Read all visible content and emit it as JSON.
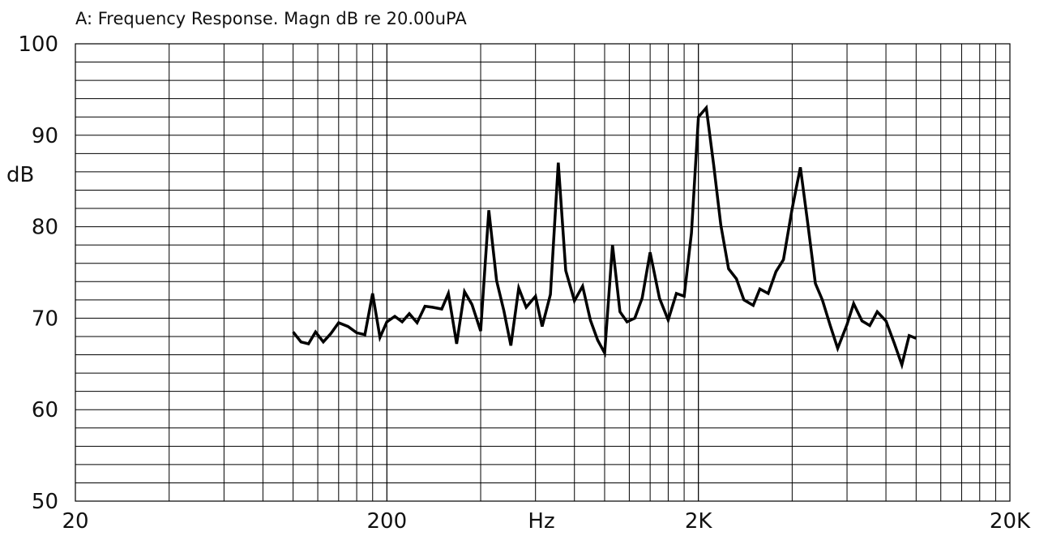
{
  "chart_data": {
    "type": "line",
    "title": "A: Frequency Response. Magn dB re 20.00uPA",
    "xlabel": "Hz",
    "ylabel": "dB",
    "x_scale": "log",
    "xlim": [
      20,
      20000
    ],
    "ylim": [
      50,
      100
    ],
    "x_ticks": [
      {
        "value": 20,
        "label": "20"
      },
      {
        "value": 200,
        "label": "200"
      },
      {
        "value": 2000,
        "label": "2K"
      },
      {
        "value": 20000,
        "label": "20K"
      }
    ],
    "y_ticks": [
      {
        "value": 100,
        "label": "100"
      },
      {
        "value": 90,
        "label": "90"
      },
      {
        "value": 80,
        "label": "80"
      },
      {
        "value": 70,
        "label": "70"
      },
      {
        "value": 60,
        "label": "60"
      },
      {
        "value": 50,
        "label": "50"
      }
    ],
    "grid": true,
    "series": [
      {
        "x": [
          100,
          106,
          112,
          118,
          125,
          132,
          140,
          150,
          160,
          170,
          180,
          190,
          200,
          212,
          224,
          236,
          250,
          265,
          280,
          300,
          315,
          335,
          355,
          375,
          400,
          425,
          450,
          475,
          500,
          530,
          560,
          600,
          630,
          670,
          710,
          750,
          800,
          850,
          900,
          950,
          1000,
          1060,
          1120,
          1180,
          1250,
          1320,
          1400,
          1500,
          1600,
          1700,
          1800,
          1900,
          2000,
          2120,
          2240,
          2360,
          2500,
          2650,
          2800,
          3000,
          3150,
          3350,
          3550,
          3750,
          4000,
          4250,
          4500,
          4750,
          5000,
          5300,
          5600,
          6000,
          6300,
          6700,
          7100,
          7500,
          8000,
          8500,
          9000,
          9500,
          10000
        ],
        "values": [
          68.5,
          67.4,
          67.2,
          68.5,
          67.4,
          68.3,
          69.5,
          69.1,
          68.4,
          68.2,
          72.7,
          67.9,
          69.6,
          70.2,
          69.6,
          70.5,
          69.5,
          71.3,
          71.2,
          71.0,
          72.7,
          67.2,
          72.9,
          71.5,
          68.6,
          81.8,
          74.1,
          70.8,
          67.0,
          73.3,
          71.2,
          72.4,
          69.1,
          72.6,
          87.0,
          75.2,
          71.9,
          73.5,
          69.8,
          67.6,
          66.2,
          78.0,
          70.7,
          69.6,
          70.0,
          72.2,
          77.2,
          72.2,
          69.8,
          72.7,
          72.4,
          79.3,
          92.0,
          93.0,
          86.7,
          80.2,
          75.4,
          74.3,
          72.0,
          71.4,
          73.2,
          72.7,
          75.1,
          76.4,
          82.0,
          86.5,
          80.1,
          73.8,
          72.0,
          69.2,
          66.7,
          69.3,
          71.6,
          69.7,
          69.2,
          70.7,
          69.7,
          67.3,
          64.9,
          68.1,
          67.8
        ]
      }
    ]
  }
}
